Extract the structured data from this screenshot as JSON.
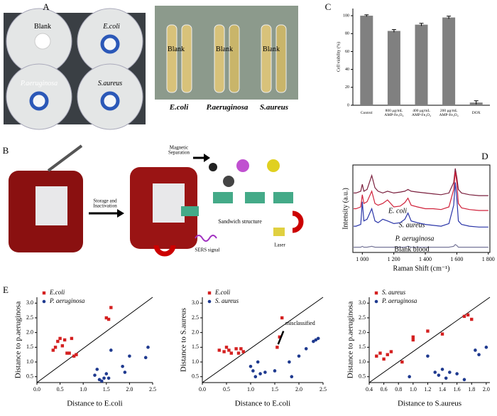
{
  "panel_labels": [
    "A",
    "B",
    "C",
    "D",
    "E"
  ],
  "panel_a": {
    "plates": [
      "Blank",
      "E.coli",
      "P.aeruginosa",
      "S.aureus"
    ],
    "tubes": [
      "E.coli",
      "P.aeruginosa",
      "S.aureus"
    ],
    "tube_label": "Blank"
  },
  "panel_b": {
    "steps": [
      "Storage and\nInactivation",
      "Magnetic\nSeparation"
    ],
    "sandwich": "Sandwich structure",
    "sers": "SERS signal",
    "laser": "Laser"
  },
  "chart_data": [
    {
      "type": "bar",
      "ylabel": "Cell viability (%)",
      "categories": [
        "Control",
        "800 μg/mL\nAMP-Fe₃O₄",
        "400 μg/mL\nAMP-Fe₃O₄",
        "200 μg/mL\nAMP-Fe₃O₄",
        "DOX"
      ],
      "values": [
        100,
        83,
        90,
        98,
        3
      ],
      "errors": [
        1,
        1.5,
        1.5,
        1.5,
        2
      ],
      "color": "#808080",
      "ylim": [
        0,
        108
      ],
      "yticks": [
        0,
        20,
        40,
        60,
        80,
        100
      ]
    },
    {
      "type": "line",
      "xlabel": "Raman Shift (cm⁻¹)",
      "ylabel": "Intensity (a.u.)",
      "x": [
        945,
        960,
        990,
        1000,
        1010,
        1030,
        1060,
        1080,
        1100,
        1130,
        1160,
        1200,
        1240,
        1270,
        1290,
        1310,
        1350,
        1400,
        1450,
        1500,
        1550,
        1580,
        1590,
        1600,
        1610,
        1630,
        1680,
        1740,
        1800
      ],
      "series": [
        {
          "name": "E. coli",
          "color": "#7a1f3d",
          "values": [
            68,
            68,
            70,
            78,
            70,
            72,
            88,
            74,
            70,
            68,
            70,
            68,
            69,
            70,
            72,
            70,
            69,
            68,
            67,
            66,
            68,
            80,
            96,
            86,
            72,
            68,
            66,
            65,
            65
          ]
        },
        {
          "name": "S. aureus",
          "color": "#d0213a",
          "values": [
            50,
            50,
            52,
            66,
            56,
            58,
            70,
            56,
            54,
            56,
            60,
            52,
            53,
            57,
            62,
            54,
            52,
            50,
            50,
            49,
            52,
            72,
            92,
            80,
            56,
            51,
            49,
            48,
            48
          ]
        },
        {
          "name": "P. aeruginosa",
          "color": "#2a35a8",
          "values": [
            30,
            30,
            32,
            58,
            36,
            38,
            50,
            36,
            34,
            38,
            36,
            33,
            34,
            38,
            45,
            36,
            34,
            32,
            31,
            30,
            33,
            54,
            80,
            62,
            36,
            32,
            30,
            29,
            29
          ]
        },
        {
          "name": "Blank blood",
          "color": "#777799",
          "values": [
            6,
            6,
            6,
            7,
            6,
            6,
            7,
            6,
            6,
            6,
            6,
            6,
            6,
            6,
            7,
            6,
            6,
            6,
            6,
            6,
            6,
            7,
            9,
            8,
            6,
            6,
            6,
            6,
            6
          ]
        }
      ],
      "xlim": [
        940,
        1810
      ],
      "ylim": [
        0,
        100
      ],
      "xticks": [
        {
          "value": 1000,
          "label": "1 000"
        },
        {
          "value": 1200,
          "label": "1 200"
        },
        {
          "value": 1400,
          "label": "1 400"
        },
        {
          "value": 1600,
          "label": "1 600"
        },
        {
          "value": 1800,
          "label": "1 800"
        }
      ]
    },
    {
      "type": "scatter",
      "xlabel": "Distance to E.coli",
      "ylabel": "Distance to p.aeruginosa",
      "series": [
        {
          "name": "E.coli",
          "color": "#d42020",
          "marker": "square",
          "x": [
            0.35,
            0.4,
            0.45,
            0.5,
            0.55,
            0.6,
            0.65,
            0.7,
            0.75,
            0.8,
            0.85,
            1.5,
            1.55,
            1.6
          ],
          "values": [
            1.4,
            1.5,
            1.7,
            1.8,
            1.55,
            1.75,
            1.3,
            1.3,
            1.8,
            1.2,
            1.25,
            2.5,
            2.45,
            2.85
          ]
        },
        {
          "name": "P. aeruginosa",
          "color": "#1f3a8f",
          "marker": "circle",
          "x": [
            1.25,
            1.3,
            1.35,
            1.4,
            1.45,
            1.5,
            1.55,
            1.6,
            1.85,
            1.9,
            2.0,
            2.35,
            2.4
          ],
          "values": [
            0.55,
            0.75,
            0.4,
            0.35,
            0.45,
            0.6,
            0.45,
            1.4,
            0.85,
            0.65,
            1.2,
            1.15,
            1.5
          ]
        }
      ],
      "xlim": [
        0,
        2.5
      ],
      "ylim": [
        0.3,
        3.2
      ],
      "xticks": [
        {
          "value": 0,
          "label": "0.0"
        },
        0.5,
        {
          "value": 1,
          "label": "1.0"
        },
        1.5,
        {
          "value": 2,
          "label": "2.0"
        },
        2.5
      ],
      "yticks": [
        0.5,
        {
          "value": 1,
          "label": "1.0"
        },
        1.5,
        {
          "value": 2,
          "label": "2.0"
        },
        2.5,
        {
          "value": 3,
          "label": "3.0"
        }
      ]
    },
    {
      "type": "scatter",
      "xlabel": "Distance to E.coli",
      "ylabel": "Distance to S.aureus",
      "annotation": "misclassified",
      "series": [
        {
          "name": "E.coli",
          "color": "#d42020",
          "marker": "square",
          "x": [
            0.35,
            0.45,
            0.5,
            0.55,
            0.6,
            0.7,
            0.75,
            0.8,
            0.85,
            1.55,
            1.6,
            1.65
          ],
          "values": [
            1.4,
            1.35,
            1.5,
            1.4,
            1.3,
            1.45,
            1.3,
            1.45,
            1.35,
            1.5,
            1.85,
            2.5
          ]
        },
        {
          "name": "S. aureus",
          "color": "#1f3a8f",
          "marker": "circle",
          "x": [
            1.0,
            1.05,
            1.1,
            1.15,
            1.2,
            1.3,
            1.5,
            1.8,
            1.85,
            2.0,
            2.15,
            2.3,
            2.35,
            2.4
          ],
          "values": [
            0.85,
            0.7,
            0.5,
            1.0,
            0.6,
            0.65,
            0.7,
            1.0,
            0.5,
            1.2,
            1.45,
            1.7,
            1.75,
            1.8
          ]
        }
      ],
      "xlim": [
        0,
        2.5
      ],
      "ylim": [
        0.3,
        3.2
      ],
      "xticks": [
        {
          "value": 0,
          "label": "0.0"
        },
        0.5,
        {
          "value": 1,
          "label": "1.0"
        },
        1.5,
        {
          "value": 2,
          "label": "2.0"
        },
        2.5
      ],
      "yticks": [
        0.5,
        {
          "value": 1,
          "label": "1.0"
        },
        1.5,
        {
          "value": 2,
          "label": "2.0"
        },
        2.5,
        {
          "value": 3,
          "label": "3.0"
        }
      ]
    },
    {
      "type": "scatter",
      "xlabel": "Distance to S.aureus",
      "ylabel": "Distance to p.aeruginosa",
      "series": [
        {
          "name": "S. aureus",
          "color": "#d42020",
          "marker": "square",
          "x": [
            0.5,
            0.55,
            0.6,
            0.65,
            0.7,
            0.85,
            1.0,
            1.0,
            1.2,
            1.4,
            1.7,
            1.75,
            1.8
          ],
          "values": [
            1.2,
            1.3,
            1.1,
            1.25,
            1.35,
            1.0,
            1.75,
            1.85,
            2.05,
            1.95,
            2.55,
            2.6,
            2.45
          ]
        },
        {
          "name": "P. aeruginosa",
          "color": "#1f3a8f",
          "marker": "circle",
          "x": [
            0.95,
            1.2,
            1.3,
            1.35,
            1.4,
            1.45,
            1.5,
            1.6,
            1.7,
            1.85,
            1.9,
            2.0
          ],
          "values": [
            0.5,
            1.2,
            0.65,
            0.55,
            0.75,
            0.45,
            0.65,
            0.6,
            0.4,
            1.4,
            1.25,
            1.5
          ]
        }
      ],
      "xlim": [
        0.4,
        2.05
      ],
      "ylim": [
        0.3,
        3.2
      ],
      "xticks": [
        0.4,
        0.6,
        0.8,
        {
          "value": 1,
          "label": "1.0"
        },
        1.2,
        1.4,
        1.6,
        1.8,
        {
          "value": 2,
          "label": "2.0"
        }
      ],
      "yticks": [
        0.5,
        {
          "value": 1,
          "label": "1.0"
        },
        1.5,
        {
          "value": 2,
          "label": "2.0"
        },
        2.5,
        {
          "value": 3,
          "label": "3.0"
        }
      ]
    }
  ]
}
